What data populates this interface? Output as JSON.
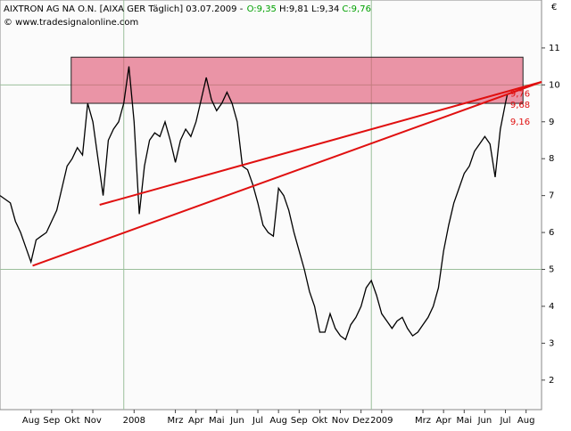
{
  "chart_data": {
    "type": "line",
    "title": "AIXTRON AG NA O.N. [AIXA GER  Täglich] 03.07.2009 -",
    "ohlc": [
      {
        "text": "O:9,35",
        "color": "#00a000"
      },
      {
        "text": "H:9,81",
        "color": "#000000"
      },
      {
        "text": "L:9,34",
        "color": "#000000"
      },
      {
        "text": "C:9,76",
        "color": "#00a000"
      }
    ],
    "subtitle": "© www.tradesignalonline.com",
    "y_axis_label": "€",
    "xlim": [
      -0.5,
      25.75
    ],
    "ylim": [
      1.2,
      12.3
    ],
    "xticks": [
      {
        "value": 1,
        "label": "Aug"
      },
      {
        "value": 2,
        "label": "Sep"
      },
      {
        "value": 3,
        "label": "Okt"
      },
      {
        "value": 4,
        "label": "Nov"
      },
      {
        "value": 6,
        "label": "2008"
      },
      {
        "value": 8,
        "label": "Mrz"
      },
      {
        "value": 9,
        "label": "Apr"
      },
      {
        "value": 10,
        "label": "Mai"
      },
      {
        "value": 11,
        "label": "Jun"
      },
      {
        "value": 12,
        "label": "Jul"
      },
      {
        "value": 13,
        "label": "Aug"
      },
      {
        "value": 14,
        "label": "Sep"
      },
      {
        "value": 15,
        "label": "Okt"
      },
      {
        "value": 16,
        "label": "Nov"
      },
      {
        "value": 17,
        "label": "Dez"
      },
      {
        "value": 18,
        "label": "2009"
      },
      {
        "value": 20,
        "label": "Mrz"
      },
      {
        "value": 21,
        "label": "Apr"
      },
      {
        "value": 22,
        "label": "Mai"
      },
      {
        "value": 23,
        "label": "Jun"
      },
      {
        "value": 24,
        "label": "Jul"
      },
      {
        "value": 25,
        "label": "Aug"
      }
    ],
    "yticks": [
      2,
      3,
      4,
      5,
      6,
      7,
      8,
      9,
      10,
      11
    ],
    "grid_y": [
      5,
      10
    ],
    "grid_x": [
      5.5,
      17.5
    ],
    "series": [
      {
        "name": "AIXTRON",
        "color": "#000000",
        "x": [
          -0.5,
          0,
          0.25,
          0.5,
          0.75,
          1,
          1.25,
          1.5,
          1.75,
          2,
          2.25,
          2.5,
          2.75,
          3,
          3.25,
          3.5,
          3.75,
          4,
          4.25,
          4.5,
          4.75,
          5,
          5.25,
          5.5,
          5.75,
          6,
          6.25,
          6.5,
          6.75,
          7,
          7.25,
          7.5,
          7.75,
          8,
          8.25,
          8.5,
          8.75,
          9,
          9.25,
          9.5,
          9.75,
          10,
          10.25,
          10.5,
          10.75,
          11,
          11.25,
          11.5,
          11.75,
          12,
          12.25,
          12.5,
          12.75,
          13,
          13.25,
          13.5,
          13.75,
          14,
          14.25,
          14.5,
          14.75,
          15,
          15.25,
          15.5,
          15.75,
          16,
          16.25,
          16.5,
          16.75,
          17,
          17.25,
          17.5,
          17.75,
          18,
          18.25,
          18.5,
          18.75,
          19,
          19.25,
          19.5,
          19.75,
          20,
          20.25,
          20.5,
          20.75,
          21,
          21.25,
          21.5,
          21.75,
          22,
          22.25,
          22.5,
          22.75,
          23,
          23.25,
          23.5,
          23.75,
          24,
          24.1
        ],
        "values": [
          7.0,
          6.8,
          6.3,
          6.0,
          5.6,
          5.2,
          5.8,
          5.9,
          6.0,
          6.3,
          6.6,
          7.2,
          7.8,
          8.0,
          8.3,
          8.1,
          9.5,
          9.0,
          8.0,
          7.0,
          8.5,
          8.8,
          9.0,
          9.5,
          10.5,
          9.0,
          6.5,
          7.8,
          8.5,
          8.7,
          8.6,
          9.0,
          8.5,
          7.9,
          8.5,
          8.8,
          8.6,
          9.0,
          9.6,
          10.2,
          9.6,
          9.3,
          9.5,
          9.8,
          9.5,
          9.0,
          7.8,
          7.7,
          7.3,
          6.8,
          6.2,
          6.0,
          5.9,
          7.2,
          7.0,
          6.6,
          6.0,
          5.5,
          5.0,
          4.4,
          4.0,
          3.3,
          3.3,
          3.8,
          3.4,
          3.2,
          3.1,
          3.5,
          3.7,
          4.0,
          4.5,
          4.7,
          4.3,
          3.8,
          3.6,
          3.4,
          3.6,
          3.7,
          3.4,
          3.2,
          3.3,
          3.5,
          3.7,
          4.0,
          4.5,
          5.5,
          6.2,
          6.8,
          7.2,
          7.6,
          7.8,
          8.2,
          8.4,
          8.6,
          8.4,
          7.5,
          8.8,
          9.5,
          9.76
        ]
      }
    ],
    "zone": {
      "x": [
        2.95,
        24.85
      ],
      "values": [
        9.5,
        10.75
      ],
      "color": "#e0506e"
    },
    "trendlines": [
      {
        "x": [
          4.33,
          25.75
        ],
        "values": [
          6.75,
          10.08
        ],
        "color": "#e01010"
      },
      {
        "x": [
          1.08,
          25.75
        ],
        "values": [
          5.1,
          10.08
        ],
        "color": "#e01010"
      }
    ],
    "annotations": [
      {
        "text": "9,76",
        "x": 24.1,
        "y": 9.76
      },
      {
        "text": "9,68",
        "x": 24.1,
        "y": 9.45
      },
      {
        "text": "9,16",
        "x": 24.1,
        "y": 9.0
      }
    ]
  }
}
